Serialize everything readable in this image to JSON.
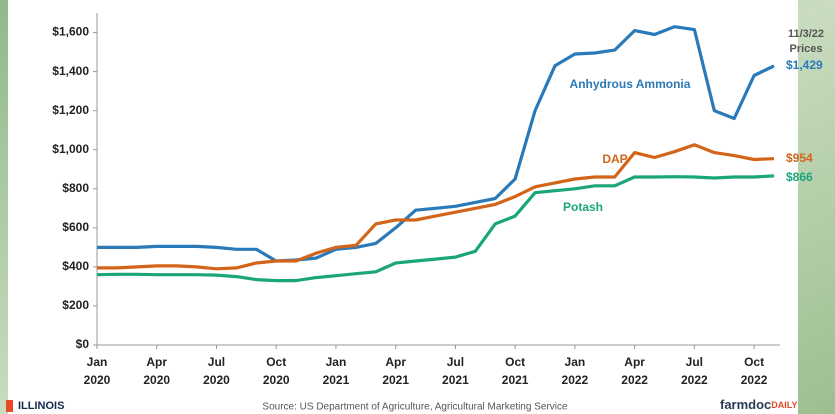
{
  "chart_data": {
    "type": "line",
    "x": [
      "2020-01",
      "2020-02",
      "2020-03",
      "2020-04",
      "2020-05",
      "2020-06",
      "2020-07",
      "2020-08",
      "2020-09",
      "2020-10",
      "2020-11",
      "2020-12",
      "2021-01",
      "2021-02",
      "2021-03",
      "2021-04",
      "2021-05",
      "2021-06",
      "2021-07",
      "2021-08",
      "2021-09",
      "2021-10",
      "2021-11",
      "2021-12",
      "2022-01",
      "2022-02",
      "2022-03",
      "2022-04",
      "2022-05",
      "2022-06",
      "2022-07",
      "2022-08",
      "2022-09",
      "2022-10",
      "2022-11"
    ],
    "xlim": [
      "2020-01",
      "2022-11"
    ],
    "xticks": [
      {
        "value": "2020-01",
        "label": [
          "Jan",
          "2020"
        ]
      },
      {
        "value": "2020-04",
        "label": [
          "Apr",
          "2020"
        ]
      },
      {
        "value": "2020-07",
        "label": [
          "Jul",
          "2020"
        ]
      },
      {
        "value": "2020-10",
        "label": [
          "Oct",
          "2020"
        ]
      },
      {
        "value": "2021-01",
        "label": [
          "Jan",
          "2021"
        ]
      },
      {
        "value": "2021-04",
        "label": [
          "Apr",
          "2021"
        ]
      },
      {
        "value": "2021-07",
        "label": [
          "Jul",
          "2021"
        ]
      },
      {
        "value": "2021-10",
        "label": [
          "Oct",
          "2021"
        ]
      },
      {
        "value": "2022-01",
        "label": [
          "Jan",
          "2022"
        ]
      },
      {
        "value": "2022-04",
        "label": [
          "Apr",
          "2022"
        ]
      },
      {
        "value": "2022-07",
        "label": [
          "Jul",
          "2022"
        ]
      },
      {
        "value": "2022-10",
        "label": [
          "Oct",
          "2022"
        ]
      }
    ],
    "ylim": [
      0,
      1700
    ],
    "yticks": [
      {
        "value": 0,
        "label": "$0"
      },
      {
        "value": 200,
        "label": "$200"
      },
      {
        "value": 400,
        "label": "$400"
      },
      {
        "value": 600,
        "label": "$600"
      },
      {
        "value": 800,
        "label": "$800"
      },
      {
        "value": 1000,
        "label": "$1,000"
      },
      {
        "value": 1200,
        "label": "$1,200"
      },
      {
        "value": 1400,
        "label": "$1,400"
      },
      {
        "value": 1600,
        "label": "$1,600"
      }
    ],
    "series": [
      {
        "name": "Anhydrous Ammonia",
        "color": "#2a7ab9",
        "values": [
          500,
          500,
          500,
          505,
          505,
          505,
          500,
          490,
          490,
          430,
          435,
          445,
          490,
          500,
          520,
          600,
          690,
          700,
          710,
          730,
          750,
          850,
          1200,
          1430,
          1490,
          1495,
          1510,
          1610,
          1590,
          1630,
          1615,
          1200,
          1160,
          1380,
          1429
        ],
        "value_labels": [
          null,
          null,
          null,
          null,
          null,
          null,
          null,
          null,
          null,
          null,
          null,
          null,
          null,
          null,
          null,
          null,
          null,
          null,
          null,
          null,
          null,
          null,
          null,
          null,
          null,
          null,
          null,
          null,
          null,
          null,
          null,
          null,
          null,
          null,
          "$1,429"
        ]
      },
      {
        "name": "DAP",
        "color": "#d3651b",
        "values": [
          395,
          395,
          400,
          405,
          405,
          400,
          390,
          395,
          420,
          430,
          430,
          470,
          500,
          510,
          620,
          640,
          640,
          660,
          680,
          700,
          720,
          760,
          810,
          830,
          850,
          860,
          860,
          985,
          960,
          990,
          1025,
          985,
          970,
          950,
          954
        ],
        "value_labels": [
          null,
          null,
          null,
          null,
          null,
          null,
          null,
          null,
          null,
          null,
          null,
          null,
          null,
          null,
          null,
          null,
          null,
          null,
          null,
          null,
          null,
          null,
          null,
          null,
          null,
          null,
          null,
          null,
          null,
          null,
          null,
          null,
          null,
          null,
          "$954"
        ]
      },
      {
        "name": "Potash",
        "color": "#1aa67a",
        "values": [
          360,
          362,
          362,
          360,
          360,
          360,
          358,
          350,
          335,
          330,
          330,
          345,
          355,
          365,
          375,
          420,
          430,
          440,
          450,
          480,
          620,
          660,
          780,
          790,
          800,
          815,
          815,
          860,
          860,
          862,
          860,
          855,
          860,
          860,
          866
        ],
        "value_labels": [
          null,
          null,
          null,
          null,
          null,
          null,
          null,
          null,
          null,
          null,
          null,
          null,
          null,
          null,
          null,
          null,
          null,
          null,
          null,
          null,
          null,
          null,
          null,
          null,
          null,
          null,
          null,
          null,
          null,
          null,
          null,
          null,
          null,
          null,
          "$866"
        ]
      }
    ],
    "annotations": [
      "11/3/22",
      "Prices"
    ]
  },
  "footer": {
    "logo": "ILLINOIS",
    "source": "Source: US Department of Agriculture, Agricultural Marketing Service",
    "brand": "farmdoc",
    "brand_accent": "DAILY"
  }
}
